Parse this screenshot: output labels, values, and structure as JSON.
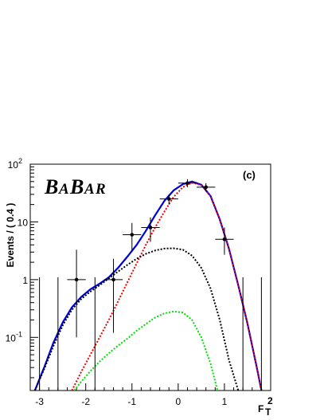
{
  "chart_data": {
    "type": "line",
    "panel_label": "(c)",
    "logo_text": "BABAR",
    "ylabel": "Events / ( 0.4 )",
    "xlabel": "F",
    "xlabel_sub": "T",
    "xlabel_sup": "2",
    "xlim": [
      -3.2,
      2.0
    ],
    "ylim": [
      0.012,
      100
    ],
    "yscale": "log",
    "x_ticks": [
      -3,
      -2,
      -1,
      0,
      1
    ],
    "y_ticks": [
      {
        "value": 0.1,
        "base": "10",
        "exp": "-1"
      },
      {
        "value": 1,
        "base": "1",
        "exp": ""
      },
      {
        "value": 10,
        "base": "10",
        "exp": ""
      },
      {
        "value": 100,
        "base": "10",
        "exp": "2"
      }
    ],
    "points": [
      {
        "x": -2.2,
        "y": 1.0,
        "ylo": 0.1,
        "yhi": 3.3
      },
      {
        "x": -1.4,
        "y": 1.0,
        "ylo": 0.12,
        "yhi": 2.3
      },
      {
        "x": -1.0,
        "y": 6.0,
        "ylo": 3.0,
        "yhi": 9.6
      },
      {
        "x": -0.6,
        "y": 8.0,
        "ylo": 4.5,
        "yhi": 12.0
      },
      {
        "x": -0.2,
        "y": 25.0,
        "ylo": 20.0,
        "yhi": 30.0
      },
      {
        "x": 0.2,
        "y": 47.0,
        "ylo": 40.0,
        "yhi": 55.0
      },
      {
        "x": 0.6,
        "y": 40.0,
        "ylo": 34.0,
        "yhi": 47.0
      },
      {
        "x": 1.0,
        "y": 5.0,
        "ylo": 2.7,
        "yhi": 8.0
      }
    ],
    "upper_limits": [
      {
        "x": -3.0,
        "yhi": 1.1
      },
      {
        "x": -2.6,
        "yhi": 1.1
      },
      {
        "x": -1.8,
        "yhi": 1.1
      },
      {
        "x": 1.4,
        "yhi": 1.1
      },
      {
        "x": 1.8,
        "yhi": 1.1
      }
    ],
    "series": [
      {
        "style": "solid",
        "color": "#0000dd",
        "x": [
          -3.1,
          -2.9,
          -2.7,
          -2.5,
          -2.3,
          -2.1,
          -1.9,
          -1.7,
          -1.5,
          -1.3,
          -1.1,
          -0.9,
          -0.7,
          -0.5,
          -0.3,
          -0.1,
          0.1,
          0.3,
          0.5,
          0.7,
          0.9,
          1.1,
          1.3,
          1.5,
          1.7,
          1.8
        ],
        "y": [
          0.012,
          0.03,
          0.08,
          0.18,
          0.33,
          0.5,
          0.68,
          0.85,
          1.1,
          1.6,
          2.5,
          4.0,
          7.0,
          13.0,
          23.0,
          35.0,
          45.0,
          50.0,
          44.0,
          28.0,
          11.0,
          3.4,
          0.8,
          0.17,
          0.03,
          0.012
        ]
      },
      {
        "style": "dotted",
        "color": "#ee0000",
        "x": [
          -2.3,
          -2.1,
          -1.9,
          -1.7,
          -1.5,
          -1.3,
          -1.1,
          -0.9,
          -0.7,
          -0.5,
          -0.3,
          -0.1,
          0.1,
          0.3,
          0.5,
          0.7,
          0.9,
          1.1,
          1.3,
          1.5,
          1.7,
          1.8
        ],
        "y": [
          0.012,
          0.025,
          0.05,
          0.1,
          0.2,
          0.42,
          0.9,
          1.9,
          4.0,
          8.0,
          15.0,
          27.0,
          40.0,
          48.0,
          43.0,
          28.0,
          11.0,
          3.4,
          0.8,
          0.17,
          0.03,
          0.012
        ]
      },
      {
        "style": "dotted",
        "color": "#000000",
        "x": [
          -3.1,
          -2.9,
          -2.7,
          -2.5,
          -2.3,
          -2.1,
          -1.9,
          -1.7,
          -1.5,
          -1.3,
          -1.1,
          -0.9,
          -0.7,
          -0.5,
          -0.3,
          -0.1,
          0.1,
          0.3,
          0.5,
          0.7,
          0.9,
          1.1,
          1.3
        ],
        "y": [
          0.012,
          0.028,
          0.07,
          0.16,
          0.3,
          0.46,
          0.62,
          0.8,
          1.05,
          1.38,
          1.8,
          2.3,
          2.8,
          3.2,
          3.45,
          3.5,
          3.3,
          2.6,
          1.6,
          0.7,
          0.2,
          0.04,
          0.012
        ]
      },
      {
        "style": "dotted",
        "color": "#00dd00",
        "x": [
          -2.25,
          -2.1,
          -1.9,
          -1.7,
          -1.5,
          -1.3,
          -1.1,
          -0.9,
          -0.7,
          -0.5,
          -0.3,
          -0.1,
          0.1,
          0.3,
          0.5,
          0.7,
          0.85
        ],
        "y": [
          0.012,
          0.017,
          0.026,
          0.038,
          0.053,
          0.072,
          0.095,
          0.13,
          0.17,
          0.22,
          0.26,
          0.28,
          0.27,
          0.2,
          0.1,
          0.035,
          0.012
        ]
      }
    ]
  }
}
